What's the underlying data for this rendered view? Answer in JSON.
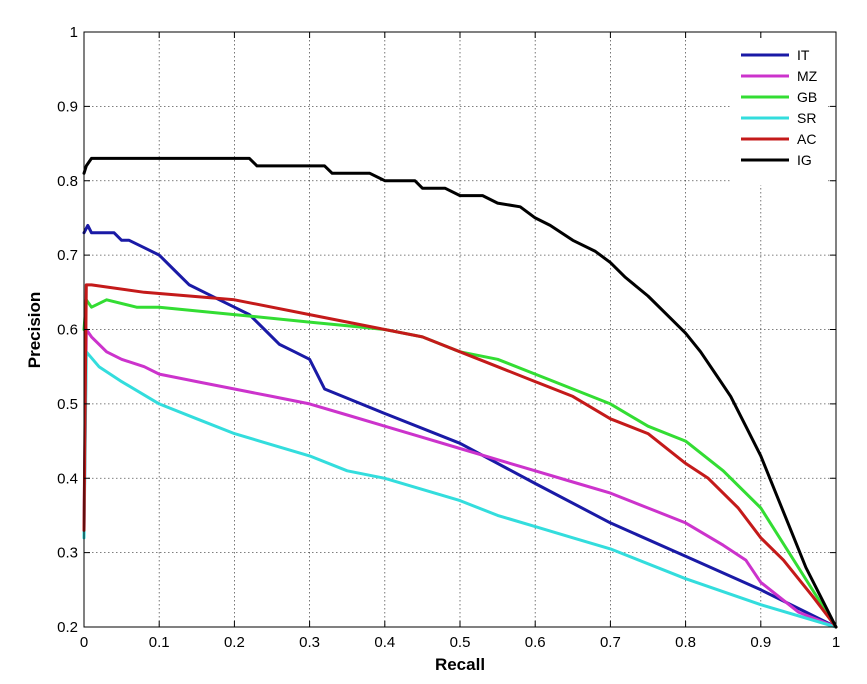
{
  "chart_data": {
    "type": "line",
    "title": "",
    "xlabel": "Recall",
    "ylabel": "Precision",
    "xlim": [
      0,
      1
    ],
    "ylim": [
      0.2,
      1
    ],
    "grid": true,
    "legend_position": "top-right",
    "xticks": [
      0,
      0.1,
      0.2,
      0.3,
      0.4,
      0.5,
      0.6,
      0.7,
      0.8,
      0.9,
      1
    ],
    "xtick_labels": [
      "0",
      "0.1",
      "0.2",
      "0.3",
      "0.4",
      "0.5",
      "0.6",
      "0.7",
      "0.8",
      "0.9",
      "1"
    ],
    "yticks": [
      0.2,
      0.3,
      0.4,
      0.5,
      0.6,
      0.7,
      0.8,
      0.9,
      1
    ],
    "ytick_labels": [
      "0.2",
      "0.3",
      "0.4",
      "0.5",
      "0.6",
      "0.7",
      "0.8",
      "0.9",
      "1"
    ],
    "series": [
      {
        "name": "IT",
        "color": "#1a1aa6",
        "x": [
          0,
          0.005,
          0.01,
          0.04,
          0.05,
          0.06,
          0.08,
          0.1,
          0.12,
          0.14,
          0.16,
          0.18,
          0.2,
          0.22,
          0.24,
          0.26,
          0.28,
          0.3,
          0.31,
          0.32,
          0.4,
          0.5,
          0.6,
          0.7,
          0.8,
          0.9,
          1.0
        ],
        "y": [
          0.73,
          0.74,
          0.73,
          0.73,
          0.72,
          0.72,
          0.71,
          0.7,
          0.68,
          0.66,
          0.65,
          0.64,
          0.63,
          0.62,
          0.6,
          0.58,
          0.57,
          0.56,
          0.54,
          0.52,
          0.487,
          0.447,
          0.393,
          0.34,
          0.295,
          0.25,
          0.2
        ]
      },
      {
        "name": "MZ",
        "color": "#cc33cc",
        "x": [
          0,
          0.003,
          0.01,
          0.03,
          0.05,
          0.08,
          0.1,
          0.15,
          0.2,
          0.25,
          0.3,
          0.35,
          0.4,
          0.45,
          0.5,
          0.55,
          0.6,
          0.65,
          0.7,
          0.75,
          0.8,
          0.85,
          0.88,
          0.9,
          0.95,
          1.0
        ],
        "y": [
          0.33,
          0.6,
          0.59,
          0.57,
          0.56,
          0.55,
          0.54,
          0.53,
          0.52,
          0.51,
          0.5,
          0.485,
          0.47,
          0.455,
          0.44,
          0.425,
          0.41,
          0.395,
          0.38,
          0.36,
          0.34,
          0.31,
          0.29,
          0.26,
          0.22,
          0.2
        ]
      },
      {
        "name": "GB",
        "color": "#33dd33",
        "x": [
          0,
          0.003,
          0.01,
          0.03,
          0.07,
          0.1,
          0.2,
          0.3,
          0.35,
          0.4,
          0.45,
          0.5,
          0.55,
          0.6,
          0.65,
          0.7,
          0.75,
          0.8,
          0.85,
          0.9,
          0.95,
          1.0
        ],
        "y": [
          0.6,
          0.64,
          0.63,
          0.64,
          0.63,
          0.63,
          0.62,
          0.61,
          0.605,
          0.6,
          0.59,
          0.57,
          0.56,
          0.54,
          0.52,
          0.5,
          0.47,
          0.45,
          0.41,
          0.36,
          0.28,
          0.2
        ]
      },
      {
        "name": "SR",
        "color": "#33dddd",
        "x": [
          0,
          0.003,
          0.02,
          0.05,
          0.1,
          0.15,
          0.2,
          0.25,
          0.3,
          0.35,
          0.4,
          0.45,
          0.5,
          0.55,
          0.6,
          0.65,
          0.7,
          0.8,
          0.9,
          1.0
        ],
        "y": [
          0.32,
          0.57,
          0.55,
          0.53,
          0.5,
          0.48,
          0.46,
          0.445,
          0.43,
          0.41,
          0.4,
          0.385,
          0.37,
          0.35,
          0.335,
          0.32,
          0.305,
          0.265,
          0.23,
          0.2
        ]
      },
      {
        "name": "AC",
        "color": "#c41a1a",
        "x": [
          0,
          0.003,
          0.01,
          0.08,
          0.2,
          0.3,
          0.4,
          0.45,
          0.5,
          0.55,
          0.6,
          0.65,
          0.7,
          0.75,
          0.8,
          0.83,
          0.87,
          0.9,
          0.93,
          0.97,
          1.0
        ],
        "y": [
          0.33,
          0.66,
          0.66,
          0.65,
          0.64,
          0.62,
          0.6,
          0.59,
          0.57,
          0.55,
          0.53,
          0.51,
          0.48,
          0.46,
          0.42,
          0.4,
          0.36,
          0.32,
          0.29,
          0.24,
          0.2
        ]
      },
      {
        "name": "IG",
        "color": "#000000",
        "x": [
          0,
          0.003,
          0.01,
          0.1,
          0.22,
          0.23,
          0.32,
          0.33,
          0.38,
          0.4,
          0.44,
          0.45,
          0.48,
          0.5,
          0.53,
          0.55,
          0.58,
          0.6,
          0.62,
          0.65,
          0.68,
          0.7,
          0.72,
          0.75,
          0.78,
          0.8,
          0.82,
          0.84,
          0.86,
          0.88,
          0.9,
          0.92,
          0.94,
          0.96,
          0.98,
          1.0
        ],
        "y": [
          0.81,
          0.82,
          0.83,
          0.83,
          0.83,
          0.82,
          0.82,
          0.81,
          0.81,
          0.8,
          0.8,
          0.79,
          0.79,
          0.78,
          0.78,
          0.77,
          0.765,
          0.75,
          0.74,
          0.72,
          0.705,
          0.69,
          0.67,
          0.645,
          0.615,
          0.595,
          0.57,
          0.54,
          0.51,
          0.47,
          0.43,
          0.38,
          0.33,
          0.28,
          0.24,
          0.2
        ]
      }
    ]
  }
}
